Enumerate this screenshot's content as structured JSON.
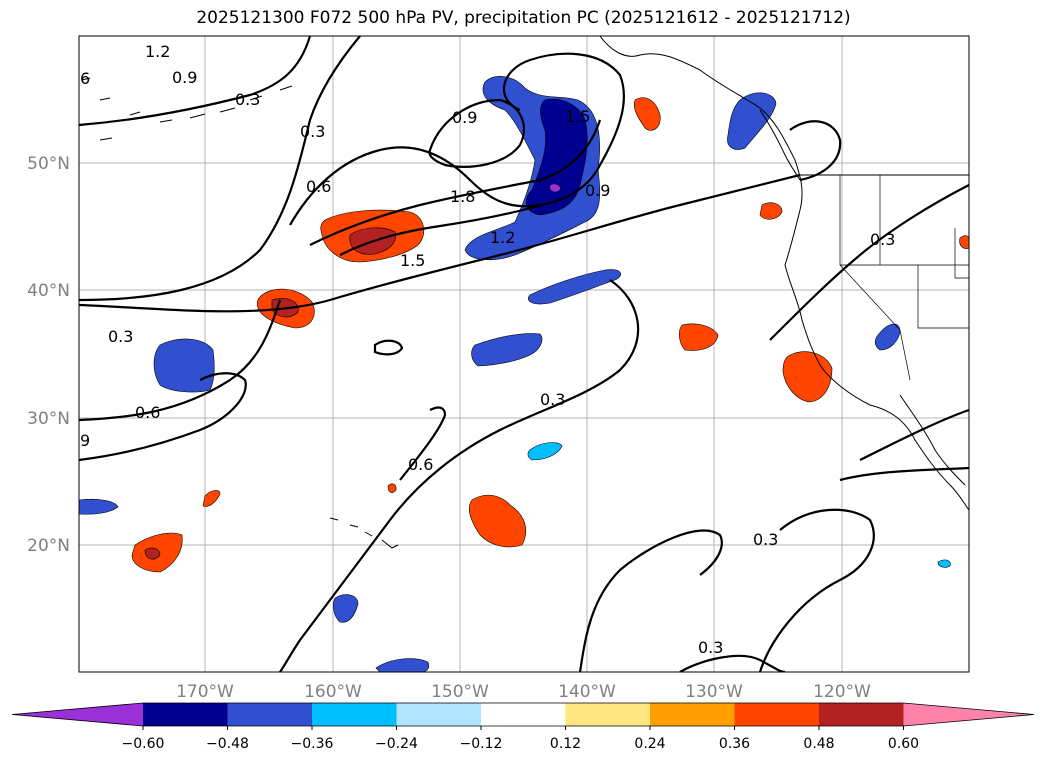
{
  "title": "2025121300 F072 500 hPa PV, precipitation PC (2025121612 - 2025121712)",
  "map": {
    "lon_ticks": [
      "170°W",
      "160°W",
      "150°W",
      "140°W",
      "130°W",
      "120°W"
    ],
    "lat_ticks": [
      "50°N",
      "40°N",
      "30°N",
      "20°N"
    ],
    "gridlines": true,
    "contour_labels": [
      "1.2",
      "0.9",
      "0.3",
      "0.3",
      "0.6",
      "0.9",
      "1.5",
      "1.8",
      "1.2",
      "1.5",
      "0.9",
      "0.3",
      "0.3",
      "0.6",
      "0.3",
      "0.6",
      "0.3",
      "0.3",
      "6",
      "9"
    ]
  },
  "colorbar": {
    "ticks": [
      "−0.60",
      "−0.48",
      "−0.36",
      "−0.24",
      "−0.12",
      "0.12",
      "0.24",
      "0.36",
      "0.48",
      "0.60"
    ],
    "colors": [
      "#9b30d9",
      "#000090",
      "#3050d0",
      "#00bfff",
      "#b0e4ff",
      "#ffffff",
      "#ffe680",
      "#ffa000",
      "#ff4500",
      "#b22222",
      "#ff82ab"
    ]
  }
}
